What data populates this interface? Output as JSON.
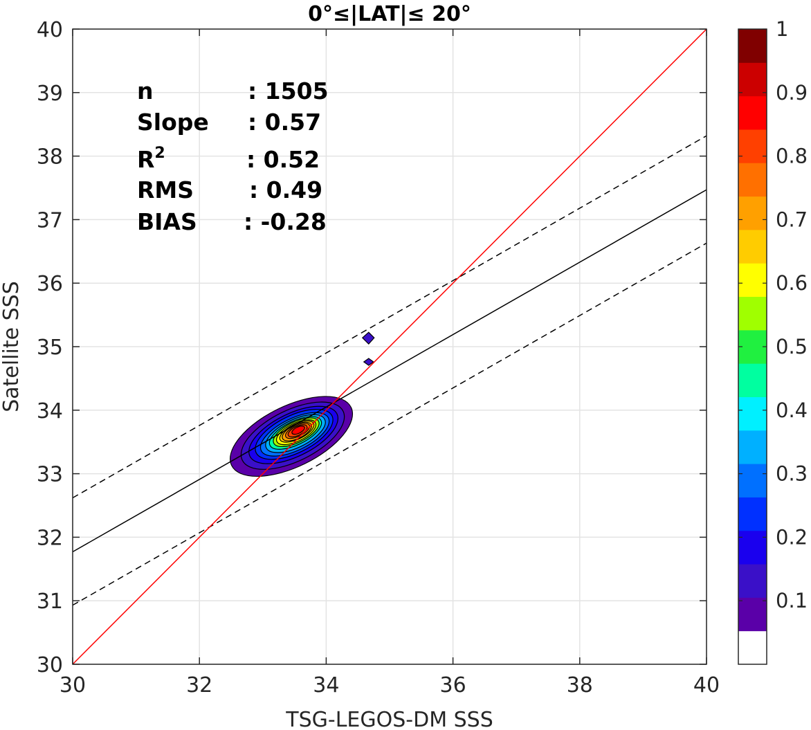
{
  "chart_data": {
    "type": "contour-scatter",
    "title": "0°≤|LAT|≤ 20°",
    "xlabel": "TSG-LEGOS-DM SSS",
    "ylabel": "Satellite SSS",
    "xlim": [
      30,
      40
    ],
    "ylim": [
      30,
      40
    ],
    "xticks": [
      "30",
      "32",
      "34",
      "36",
      "38",
      "40"
    ],
    "yticks": [
      "30",
      "31",
      "32",
      "33",
      "34",
      "35",
      "36",
      "37",
      "38",
      "39",
      "40"
    ],
    "grid": true,
    "stats": [
      {
        "label": "n",
        "value": ": 1505"
      },
      {
        "label": "Slope",
        "value": ": 0.57"
      },
      {
        "label": "R",
        "sup": "2",
        "value": ": 0.52"
      },
      {
        "label": "RMS",
        "value": ": 0.49"
      },
      {
        "label": "BIAS",
        "value": ": -0.28"
      }
    ],
    "lines": {
      "one_to_one": {
        "color": "#ff0000",
        "x": [
          30,
          40
        ],
        "y": [
          30,
          40
        ]
      },
      "regression": {
        "color": "#000000",
        "style": "solid",
        "x": [
          30,
          40
        ],
        "y": [
          31.77,
          37.47
        ]
      },
      "upper_bound": {
        "color": "#000000",
        "style": "dashed",
        "x": [
          30,
          40
        ],
        "y": [
          32.62,
          38.32
        ]
      },
      "lower_bound": {
        "color": "#000000",
        "style": "dashed",
        "x": [
          30,
          40
        ],
        "y": [
          30.93,
          36.63
        ]
      }
    },
    "density_center": {
      "x": 33.45,
      "y": 33.62
    },
    "colorbar": {
      "range": [
        0,
        1
      ],
      "ticks": [
        "0.1",
        "0.2",
        "0.3",
        "0.4",
        "0.5",
        "0.6",
        "0.7",
        "0.8",
        "0.9",
        "1"
      ],
      "colors": [
        "#ffffff",
        "#5a00a8",
        "#3a10c8",
        "#1a00ee",
        "#0030ff",
        "#0070ff",
        "#00b0ff",
        "#00f0ff",
        "#00ffa0",
        "#20f040",
        "#a0ff00",
        "#ffff00",
        "#ffcc00",
        "#ffa000",
        "#ff7000",
        "#ff4000",
        "#ff0000",
        "#cc0000",
        "#800000"
      ]
    }
  }
}
